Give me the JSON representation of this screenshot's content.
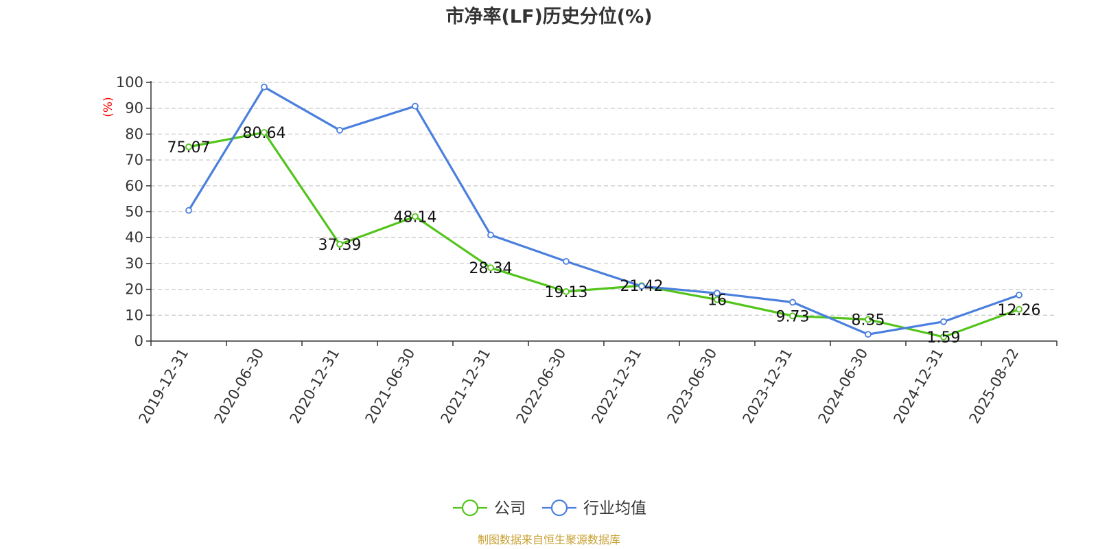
{
  "chart_data": {
    "type": "line",
    "title": "市净率(LF)历史分位(%)",
    "ylabel": "(%)",
    "xlabel": "",
    "ylim": [
      0,
      100
    ],
    "yticks": [
      0,
      10,
      20,
      30,
      40,
      50,
      60,
      70,
      80,
      90,
      100
    ],
    "grid": true,
    "legend_position": "bottom",
    "categories": [
      "2019-12-31",
      "2020-06-30",
      "2020-12-31",
      "2021-06-30",
      "2021-12-31",
      "2022-06-30",
      "2022-12-31",
      "2023-06-30",
      "2023-12-31",
      "2024-06-30",
      "2024-12-31",
      "2025-08-22"
    ],
    "series": [
      {
        "name": "公司",
        "color": "#52c41a",
        "values": [
          75.07,
          80.64,
          37.39,
          48.14,
          28.34,
          19.13,
          21.42,
          16,
          9.73,
          8.35,
          1.59,
          12.26
        ],
        "labels": [
          "75.07",
          "80.64",
          "37.39",
          "48.14",
          "28.34",
          "19.13",
          "21.42",
          "16",
          "9.73",
          "8.35",
          "1.59",
          "12.26"
        ]
      },
      {
        "name": "行业均值",
        "color": "#4a7fdd",
        "values": [
          50.5,
          98.2,
          81.5,
          90.8,
          41,
          30.8,
          21.2,
          18.5,
          15,
          2.6,
          7.5,
          17.8
        ]
      }
    ],
    "source": "制图数据来自恒生聚源数据库"
  }
}
